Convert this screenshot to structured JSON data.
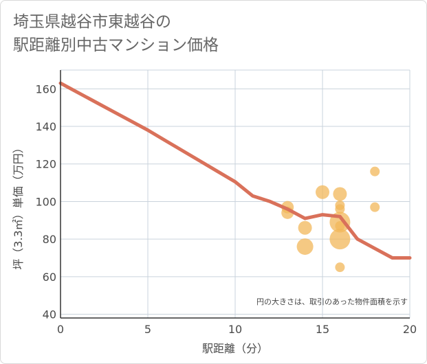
{
  "title": {
    "line1": "埼玉県越谷市東越谷の",
    "line2": "駅距離別中古マンション価格"
  },
  "chart_data": {
    "type": "scatter",
    "xlabel": "駅距離（分）",
    "ylabel": "坪（3.3㎡）単価（万円）",
    "xlim": [
      0,
      20
    ],
    "ylim": [
      38,
      170
    ],
    "xticks": [
      0,
      5,
      10,
      15,
      20
    ],
    "yticks": [
      40,
      60,
      80,
      100,
      120,
      140,
      160
    ],
    "grid": true,
    "note": "円の大きさは、取引のあった物件面積を示す",
    "colors": {
      "trend": "#d9715a",
      "bubble": "#f2b759",
      "grid": "#c9d3dc",
      "axis": "#333333"
    },
    "trend_line": {
      "x": [
        0,
        1,
        2,
        3,
        4,
        5,
        6,
        7,
        8,
        9,
        10,
        11,
        12,
        13,
        14,
        15,
        16,
        17,
        18,
        19,
        20
      ],
      "y": [
        163,
        158,
        153,
        148,
        143,
        138,
        132.5,
        127,
        121.5,
        116,
        110.5,
        103,
        100,
        96,
        91,
        93,
        92,
        80,
        75,
        70,
        70
      ]
    },
    "points": [
      {
        "x": 13,
        "y": 97,
        "size": 9
      },
      {
        "x": 13,
        "y": 94,
        "size": 9
      },
      {
        "x": 14,
        "y": 86,
        "size": 10
      },
      {
        "x": 14,
        "y": 76,
        "size": 12
      },
      {
        "x": 15,
        "y": 105,
        "size": 10
      },
      {
        "x": 16,
        "y": 104,
        "size": 10
      },
      {
        "x": 16,
        "y": 98,
        "size": 7
      },
      {
        "x": 16,
        "y": 96,
        "size": 7
      },
      {
        "x": 16,
        "y": 89,
        "size": 15
      },
      {
        "x": 16,
        "y": 87,
        "size": 7
      },
      {
        "x": 16,
        "y": 80,
        "size": 15
      },
      {
        "x": 16,
        "y": 65,
        "size": 7
      },
      {
        "x": 18,
        "y": 116,
        "size": 7
      },
      {
        "x": 18,
        "y": 97,
        "size": 7
      }
    ]
  }
}
